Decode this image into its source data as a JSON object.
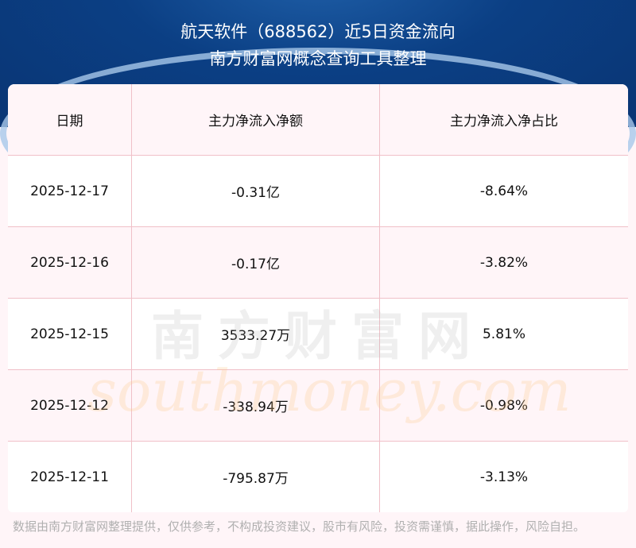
{
  "header": {
    "title": "航天软件（688562）近5日资金流向",
    "subtitle": "南方财富网概念查询工具整理"
  },
  "table": {
    "columns": [
      "日期",
      "主力净流入净额",
      "主力净流入净占比"
    ],
    "rows": [
      [
        "2025-12-17",
        "-0.31亿",
        "-8.64%"
      ],
      [
        "2025-12-16",
        "-0.17亿",
        "-3.82%"
      ],
      [
        "2025-12-15",
        "3533.27万",
        "5.81%"
      ],
      [
        "2025-12-12",
        "-338.94万",
        "-0.98%"
      ],
      [
        "2025-12-11",
        "-795.87万",
        "-3.13%"
      ]
    ]
  },
  "watermark": {
    "cn": "南方财富网",
    "en": "southmoney.com"
  },
  "disclaimer": "数据由南方财富网整理提供，仅供参考，不构成投资建议，股市有风险，投资需谨慎，据此操作，风险自担。",
  "colors": {
    "header_bg": "#0b3f84",
    "row_alt": "#fff5f8",
    "border": "#f0c0c8"
  }
}
